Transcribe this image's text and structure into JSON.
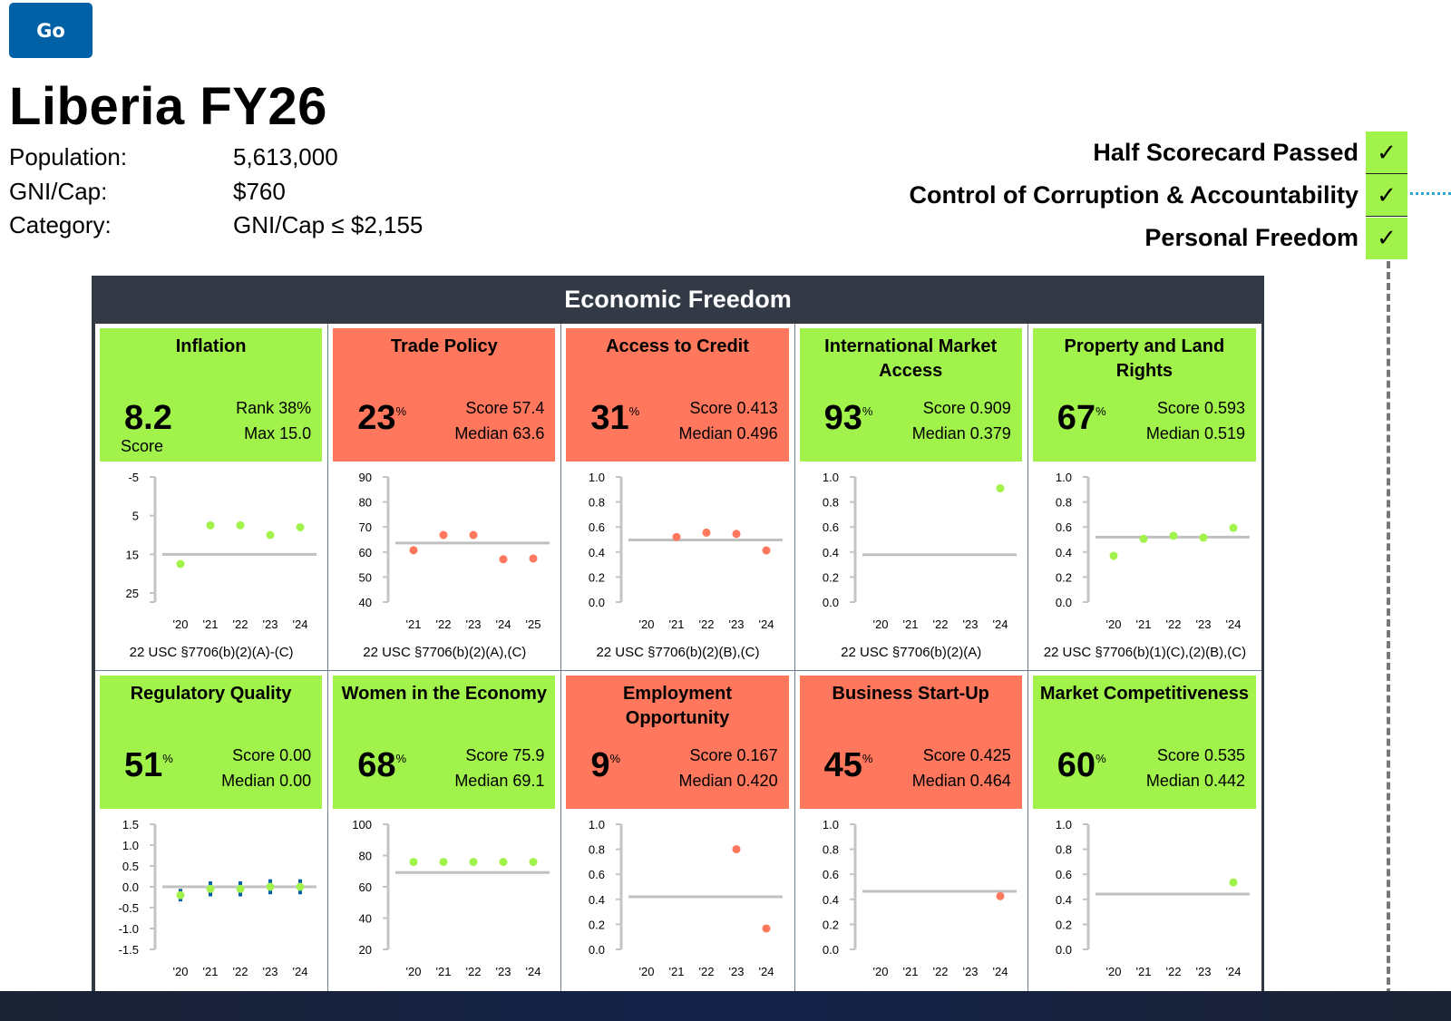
{
  "go_button": {
    "label": "Go"
  },
  "title": "Liberia FY26",
  "info": [
    {
      "label": "Population:",
      "value": "5,613,000"
    },
    {
      "label": "GNI/Cap:",
      "value": "$760"
    },
    {
      "label": "Category:",
      "value": "GNI/Cap ≤ $2,155"
    }
  ],
  "checks": [
    {
      "label": "Half Scorecard Passed",
      "status": "✓"
    },
    {
      "label": "Control of Corruption & Accountability",
      "status": "✓"
    },
    {
      "label": "Personal Freedom",
      "status": "✓"
    }
  ],
  "colors": {
    "pass": "#a1f24a",
    "fail": "#ff775c",
    "median_line": "#c0c0c0",
    "error_bar": "#0061a6",
    "header": "#333a46",
    "button": "#0061a6"
  },
  "panel": {
    "title": "Economic Freedom"
  },
  "indicators": [
    {
      "title": "Inflation",
      "status": "pass",
      "big": "8.2",
      "big_suffix": "",
      "big_sub": "Score",
      "stat1": "Rank 38%",
      "stat2": "Max 15.0",
      "law": "22 USC §7706(b)(2)(A)-(C)"
    },
    {
      "title": "Trade Policy",
      "status": "fail",
      "big": "23",
      "big_suffix": "%",
      "big_sub": "",
      "stat1": "Score 57.4",
      "stat2": "Median 63.6",
      "law": "22 USC §7706(b)(2)(A),(C)"
    },
    {
      "title": "Access to Credit",
      "status": "fail",
      "big": "31",
      "big_suffix": "%",
      "big_sub": "",
      "stat1": "Score 0.413",
      "stat2": "Median 0.496",
      "law": "22 USC §7706(b)(2)(B),(C)"
    },
    {
      "title": "International Market Access",
      "status": "pass",
      "big": "93",
      "big_suffix": "%",
      "big_sub": "",
      "stat1": "Score 0.909",
      "stat2": "Median 0.379",
      "law": "22 USC §7706(b)(2)(A)"
    },
    {
      "title": "Property and Land Rights",
      "status": "pass",
      "big": "67",
      "big_suffix": "%",
      "big_sub": "",
      "stat1": "Score 0.593",
      "stat2": "Median 0.519",
      "law": "22 USC §7706(b)(1)(C),(2)(B),(C)"
    },
    {
      "title": "Regulatory Quality",
      "status": "pass",
      "big": "51",
      "big_suffix": "%",
      "big_sub": "",
      "stat1": "Score 0.00",
      "stat2": "Median 0.00",
      "law": ""
    },
    {
      "title": "Women in the Economy",
      "status": "pass",
      "big": "68",
      "big_suffix": "%",
      "big_sub": "",
      "stat1": "Score 75.9",
      "stat2": "Median 69.1",
      "law": ""
    },
    {
      "title": "Employment Opportunity",
      "status": "fail",
      "big": "9",
      "big_suffix": "%",
      "big_sub": "",
      "stat1": "Score 0.167",
      "stat2": "Median 0.420",
      "law": ""
    },
    {
      "title": "Business Start-Up",
      "status": "fail",
      "big": "45",
      "big_suffix": "%",
      "big_sub": "",
      "stat1": "Score 0.425",
      "stat2": "Median 0.464",
      "law": ""
    },
    {
      "title": "Market Competitiveness",
      "status": "pass",
      "big": "60",
      "big_suffix": "%",
      "big_sub": "",
      "stat1": "Score 0.535",
      "stat2": "Median 0.442",
      "law": ""
    }
  ],
  "chart_data": [
    {
      "type": "scatter",
      "title": "Inflation",
      "reversed": true,
      "ylim": [
        -5,
        30
      ],
      "yticks": [
        -5,
        5,
        15,
        25
      ],
      "ytick_labels": [
        "-5",
        "5",
        "15",
        "25"
      ],
      "categories": [
        "'20",
        "'21",
        "'22",
        "'23",
        "'24"
      ],
      "values": [
        17.5,
        7.5,
        7.5,
        10,
        8
      ],
      "median": 15
    },
    {
      "type": "scatter",
      "title": "Trade Policy",
      "ylim": [
        40,
        90
      ],
      "yticks": [
        40,
        50,
        60,
        70,
        80,
        90
      ],
      "ytick_labels": [
        "40",
        "50",
        "60",
        "70",
        "80",
        "90"
      ],
      "categories": [
        "'21",
        "'22",
        "'23",
        "'24",
        "'25"
      ],
      "values": [
        60.7,
        66.8,
        66.8,
        57.1,
        57.4
      ],
      "median": 63.6
    },
    {
      "type": "scatter",
      "title": "Access to Credit",
      "ylim": [
        0,
        1
      ],
      "yticks": [
        0,
        0.2,
        0.4,
        0.6,
        0.8,
        1.0
      ],
      "ytick_labels": [
        "0.0",
        "0.2",
        "0.4",
        "0.6",
        "0.8",
        "1.0"
      ],
      "categories": [
        "'20",
        "'21",
        "'22",
        "'23",
        "'24"
      ],
      "values": [
        null,
        0.52,
        0.555,
        0.545,
        0.413
      ],
      "median": 0.496
    },
    {
      "type": "scatter",
      "title": "International Market Access",
      "ylim": [
        0,
        1
      ],
      "yticks": [
        0,
        0.2,
        0.4,
        0.6,
        0.8,
        1.0
      ],
      "ytick_labels": [
        "0.0",
        "0.2",
        "0.4",
        "0.6",
        "0.8",
        "1.0"
      ],
      "categories": [
        "'20",
        "'21",
        "'22",
        "'23",
        "'24"
      ],
      "values": [
        null,
        null,
        null,
        null,
        0.909
      ],
      "median": 0.379
    },
    {
      "type": "scatter",
      "title": "Property and Land Rights",
      "ylim": [
        0,
        1
      ],
      "yticks": [
        0,
        0.2,
        0.4,
        0.6,
        0.8,
        1.0
      ],
      "ytick_labels": [
        "0.0",
        "0.2",
        "0.4",
        "0.6",
        "0.8",
        "1.0"
      ],
      "categories": [
        "'20",
        "'21",
        "'22",
        "'23",
        "'24"
      ],
      "values": [
        0.37,
        0.505,
        0.53,
        0.515,
        0.593
      ],
      "median": 0.519
    },
    {
      "type": "scatter",
      "title": "Regulatory Quality",
      "ylim": [
        -1.5,
        1.5
      ],
      "yticks": [
        -1.5,
        -1.0,
        -0.5,
        0,
        0.5,
        1.0,
        1.5
      ],
      "ytick_labels": [
        "-1.5",
        "-1.0",
        "-0.5",
        "0.0",
        "0.5",
        "1.0",
        "1.5"
      ],
      "categories": [
        "'20",
        "'21",
        "'22",
        "'23",
        "'24"
      ],
      "values": [
        -0.2,
        -0.05,
        -0.05,
        0.0,
        0.0
      ],
      "error": [
        0.15,
        0.18,
        0.18,
        0.18,
        0.18
      ],
      "median": 0.0
    },
    {
      "type": "scatter",
      "title": "Women in the Economy",
      "ylim": [
        20,
        100
      ],
      "yticks": [
        20,
        40,
        60,
        80,
        100
      ],
      "ytick_labels": [
        "20",
        "40",
        "60",
        "80",
        "100"
      ],
      "categories": [
        "'20",
        "'21",
        "'22",
        "'23",
        "'24"
      ],
      "values": [
        75.9,
        75.9,
        75.9,
        75.9,
        75.9
      ],
      "median": 69.1
    },
    {
      "type": "scatter",
      "title": "Employment Opportunity",
      "ylim": [
        0,
        1
      ],
      "yticks": [
        0,
        0.2,
        0.4,
        0.6,
        0.8,
        1.0
      ],
      "ytick_labels": [
        "0.0",
        "0.2",
        "0.4",
        "0.6",
        "0.8",
        "1.0"
      ],
      "categories": [
        "'20",
        "'21",
        "'22",
        "'23",
        "'24"
      ],
      "values": [
        null,
        null,
        null,
        0.8,
        0.167
      ],
      "median": 0.42
    },
    {
      "type": "scatter",
      "title": "Business Start-Up",
      "ylim": [
        0,
        1
      ],
      "yticks": [
        0,
        0.2,
        0.4,
        0.6,
        0.8,
        1.0
      ],
      "ytick_labels": [
        "0.0",
        "0.2",
        "0.4",
        "0.6",
        "0.8",
        "1.0"
      ],
      "categories": [
        "'20",
        "'21",
        "'22",
        "'23",
        "'24"
      ],
      "values": [
        null,
        null,
        null,
        null,
        0.425
      ],
      "median": 0.464
    },
    {
      "type": "scatter",
      "title": "Market Competitiveness",
      "ylim": [
        0,
        1
      ],
      "yticks": [
        0,
        0.2,
        0.4,
        0.6,
        0.8,
        1.0
      ],
      "ytick_labels": [
        "0.0",
        "0.2",
        "0.4",
        "0.6",
        "0.8",
        "1.0"
      ],
      "categories": [
        "'20",
        "'21",
        "'22",
        "'23",
        "'24"
      ],
      "values": [
        null,
        null,
        null,
        null,
        0.535
      ],
      "median": 0.442
    }
  ]
}
